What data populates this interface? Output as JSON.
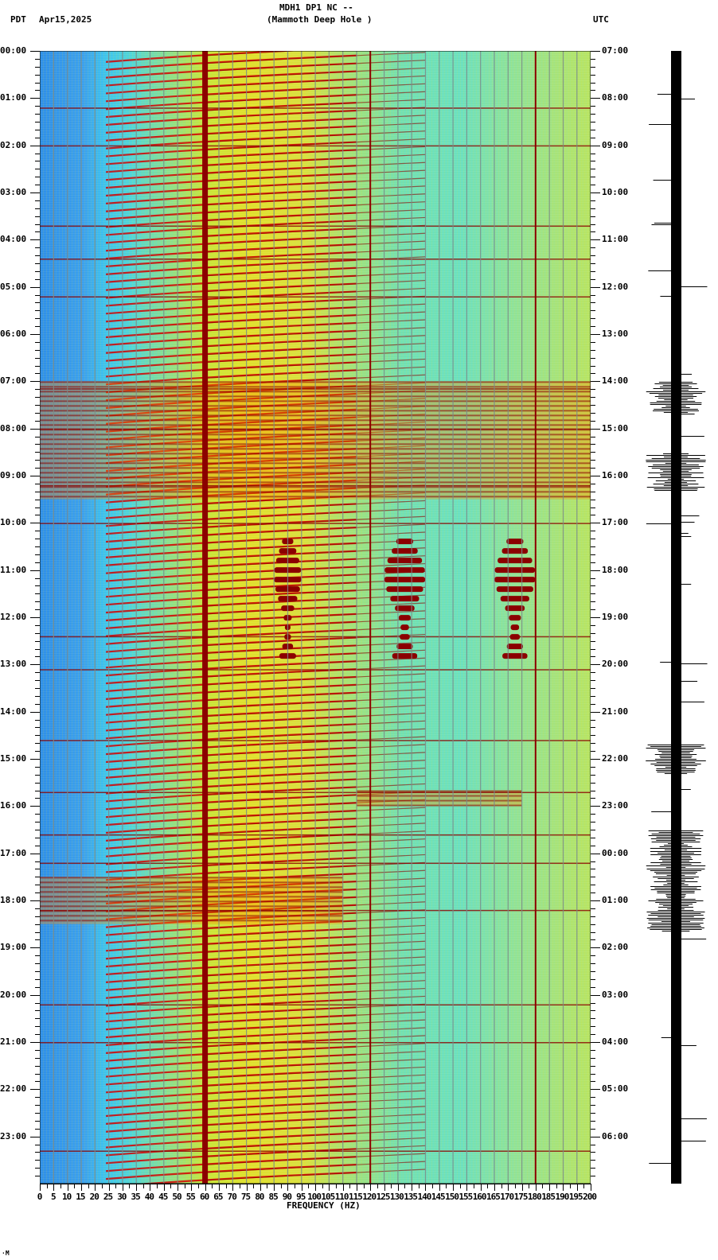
{
  "header": {
    "station_line": "MDH1 DP1 NC --",
    "site_line": "(Mammoth Deep Hole )",
    "left_tz": "PDT",
    "date": "Apr15,2025",
    "right_tz": "UTC"
  },
  "footer_mark": "⋅M",
  "colors": {
    "hot": "#8b0000",
    "red": "#d40000",
    "orange": "#ff8c00",
    "yellow": "#f0f000",
    "cyan": "#30e8e8",
    "blue": "#2a7de0",
    "grid": "#7a8a8a",
    "axis": "#000000"
  },
  "chart_data": {
    "type": "heatmap",
    "title": "MDH1 DP1 NC -- (Mammoth Deep Hole )",
    "subtitle": "Apr15,2025",
    "xlabel": "FREQUENCY (HZ)",
    "ylabel_left": "PDT",
    "ylabel_right": "UTC",
    "xlim": [
      0,
      200
    ],
    "x_ticks": [
      0,
      5,
      10,
      15,
      20,
      25,
      30,
      35,
      40,
      45,
      50,
      55,
      60,
      65,
      70,
      75,
      80,
      85,
      90,
      95,
      100,
      105,
      110,
      115,
      120,
      125,
      130,
      135,
      140,
      145,
      150,
      155,
      160,
      165,
      170,
      175,
      180,
      185,
      190,
      195,
      200
    ],
    "y_ticks_left": [
      "00:00",
      "01:00",
      "02:00",
      "03:00",
      "04:00",
      "05:00",
      "06:00",
      "07:00",
      "08:00",
      "09:00",
      "10:00",
      "11:00",
      "12:00",
      "13:00",
      "14:00",
      "15:00",
      "16:00",
      "17:00",
      "18:00",
      "19:00",
      "20:00",
      "21:00",
      "22:00",
      "23:00"
    ],
    "y_ticks_right": [
      "07:00",
      "08:00",
      "09:00",
      "10:00",
      "11:00",
      "12:00",
      "13:00",
      "14:00",
      "15:00",
      "16:00",
      "17:00",
      "18:00",
      "19:00",
      "20:00",
      "21:00",
      "22:00",
      "23:00",
      "00:00",
      "01:00",
      "02:00",
      "03:00",
      "04:00",
      "05:00",
      "06:00"
    ],
    "hours": 24,
    "minor_ticks_per_hour": 6,
    "persistent_lines_hz": [
      60,
      120,
      180
    ],
    "colormap": [
      "blue",
      "cyan",
      "green",
      "yellow",
      "red",
      "dark red"
    ],
    "description": "Spectrogram: low power (blue) below ~25 Hz, strong 60 Hz power-line line, curved harmonic streaks repeating every ~10 min, broadband noise events near 07:00-09:30 and 17:30-18:30 PDT, tremor-like patches at ~90, 130, 175 Hz between 10:00 and 13:00 PDT.",
    "events": [
      {
        "start_pdt": "07:00",
        "end_pdt": "09:30",
        "band_hz": [
          0,
          200
        ],
        "level": "high"
      },
      {
        "start_pdt": "10:20",
        "end_pdt": "12:50",
        "band_hz": [
          85,
          95
        ],
        "level": "high"
      },
      {
        "start_pdt": "10:20",
        "end_pdt": "12:50",
        "band_hz": [
          125,
          140
        ],
        "level": "high"
      },
      {
        "start_pdt": "10:20",
        "end_pdt": "12:50",
        "band_hz": [
          165,
          180
        ],
        "level": "high"
      },
      {
        "start_pdt": "15:40",
        "end_pdt": "16:00",
        "band_hz": [
          115,
          175
        ],
        "level": "high"
      },
      {
        "start_pdt": "17:30",
        "end_pdt": "18:30",
        "band_hz": [
          0,
          110
        ],
        "level": "high"
      }
    ]
  },
  "seismogram": {
    "label": "helicorder trace",
    "active_windows_pdt": [
      [
        "07:00",
        "07:40"
      ],
      [
        "08:30",
        "09:20"
      ],
      [
        "14:40",
        "15:20"
      ],
      [
        "16:30",
        "18:40"
      ]
    ]
  }
}
